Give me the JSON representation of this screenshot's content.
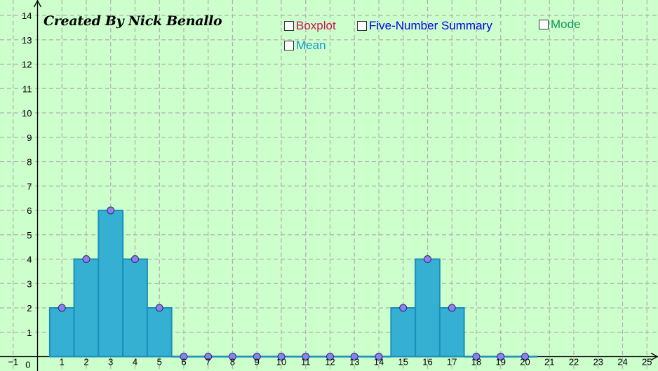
{
  "credit": "Created By Nick Benallo",
  "checkboxes": {
    "boxplot": {
      "label": "Boxplot",
      "color": "#cc1155"
    },
    "five_number": {
      "label": "Five-Number Summary",
      "color": "#0000ee"
    },
    "mode": {
      "label": "Mode",
      "color": "#119955"
    },
    "mean": {
      "label": "Mean",
      "color": "#1199cc"
    }
  },
  "colors": {
    "background": "#ccffcc",
    "grid": "#b0b0b0",
    "bar_fill": "#36b0d2",
    "bar_stroke": "#1a8fb8",
    "point_fill": "#8a80f0",
    "point_stroke": "#2b2b66"
  },
  "chart_data": {
    "type": "bar",
    "title": "",
    "xlabel": "",
    "ylabel": "",
    "xlim": [
      -1,
      25
    ],
    "ylim": [
      0,
      14
    ],
    "grid": true,
    "x_ticks": [
      -1,
      1,
      2,
      3,
      4,
      5,
      6,
      7,
      8,
      9,
      10,
      11,
      12,
      13,
      14,
      15,
      16,
      17,
      18,
      19,
      20,
      21,
      22,
      23,
      24,
      25
    ],
    "y_ticks": [
      1,
      2,
      3,
      4,
      5,
      6,
      7,
      8,
      9,
      10,
      11,
      12,
      13,
      14
    ],
    "origin_label": "0",
    "categories": [
      1,
      2,
      3,
      4,
      5,
      6,
      7,
      8,
      9,
      10,
      11,
      12,
      13,
      14,
      15,
      16,
      17,
      18,
      19,
      20
    ],
    "values": [
      2,
      4,
      6,
      4,
      2,
      0,
      0,
      0,
      0,
      0,
      0,
      0,
      0,
      0,
      2,
      4,
      2,
      0,
      0,
      0
    ]
  }
}
